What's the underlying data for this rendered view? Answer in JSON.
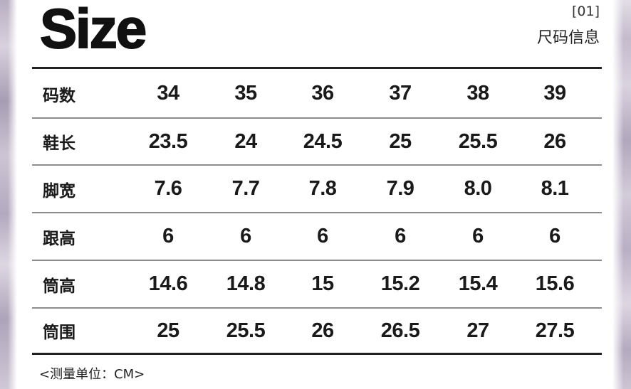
{
  "header": {
    "title": "Size",
    "index": "[01]",
    "subtitle": "尺码信息"
  },
  "table": {
    "rows": [
      {
        "label": "码数",
        "cells": [
          "34",
          "35",
          "36",
          "37",
          "38",
          "39"
        ]
      },
      {
        "label": "鞋长",
        "cells": [
          "23.5",
          "24",
          "24.5",
          "25",
          "25.5",
          "26"
        ]
      },
      {
        "label": "脚宽",
        "cells": [
          "7.6",
          "7.7",
          "7.8",
          "7.9",
          "8.0",
          "8.1"
        ]
      },
      {
        "label": "跟高",
        "cells": [
          "6",
          "6",
          "6",
          "6",
          "6",
          "6"
        ]
      },
      {
        "label": "筒高",
        "cells": [
          "14.6",
          "14.8",
          "15",
          "15.2",
          "15.4",
          "15.6"
        ]
      },
      {
        "label": "筒围",
        "cells": [
          "25",
          "25.5",
          "26",
          "26.5",
          "27",
          "27.5"
        ]
      }
    ]
  },
  "footer": {
    "note": "<测量单位：CM>"
  },
  "colors": {
    "text": "#111111",
    "rule": "#222222",
    "divider": "#8c8c8c",
    "background": "#ffffff",
    "edge": "#b9afc4"
  }
}
